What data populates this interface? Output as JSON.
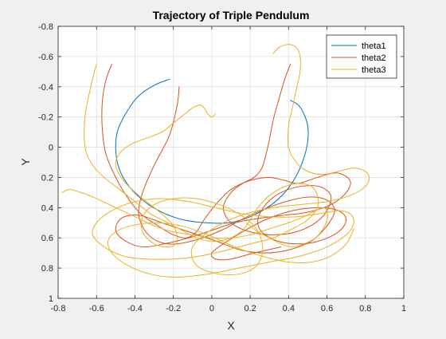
{
  "chart_data": {
    "type": "line",
    "title": "Trajectory of Triple Pendulum",
    "xlabel": "X",
    "ylabel": "Y",
    "xlim": [
      -0.8,
      1
    ],
    "ylim": [
      -0.8,
      1
    ],
    "y_reversed": true,
    "grid": true,
    "legend_placement": "top-right",
    "x_ticks": [
      -0.8,
      -0.6,
      -0.4,
      -0.2,
      0,
      0.2,
      0.4,
      0.6,
      0.8,
      1
    ],
    "x_tick_labels": [
      "-0.8",
      "-0.6",
      "-0.4",
      "-0.2",
      "0",
      "0.2",
      "0.4",
      "0.6",
      "0.8",
      "1"
    ],
    "y_ticks": [
      -0.8,
      -0.6,
      -0.4,
      -0.2,
      0,
      0.2,
      0.4,
      0.6,
      0.8,
      1
    ],
    "y_tick_labels": [
      "-0.8",
      "-0.6",
      "-0.4",
      "-0.2",
      "0",
      "0.2",
      "0.4",
      "0.6",
      "0.8",
      "1"
    ],
    "series": [
      {
        "name": "theta1",
        "color": "#0072BD",
        "segments": [
          {
            "x": [
              -0.22,
              -0.3,
              -0.38,
              -0.44,
              -0.49,
              -0.5,
              -0.48,
              -0.43,
              -0.35,
              -0.26,
              -0.15,
              -0.03,
              0.09,
              0.2,
              0.3,
              0.38,
              0.44,
              0.48,
              0.5,
              0.5,
              0.48,
              0.45,
              0.41
            ],
            "y": [
              -0.45,
              -0.41,
              -0.34,
              -0.24,
              -0.11,
              0.02,
              0.15,
              0.26,
              0.36,
              0.43,
              0.48,
              0.5,
              0.5,
              0.46,
              0.39,
              0.3,
              0.19,
              0.07,
              -0.04,
              -0.14,
              -0.22,
              -0.28,
              -0.31
            ]
          }
        ]
      },
      {
        "name": "theta2",
        "color": "#D95319",
        "segments": [
          {
            "x": [
              -0.52,
              -0.55,
              -0.57,
              -0.57,
              -0.55,
              -0.5,
              -0.44,
              -0.37,
              -0.28,
              -0.2,
              -0.13,
              -0.08,
              -0.04,
              0.02,
              0.1,
              0.2,
              0.3,
              0.38,
              0.45,
              0.55,
              0.65,
              0.72,
              0.7,
              0.62,
              0.5,
              0.38,
              0.25,
              0.12,
              0.0,
              -0.12,
              -0.25,
              -0.36,
              -0.45,
              -0.5,
              -0.47,
              -0.38,
              -0.26,
              -0.12,
              0.02,
              0.15,
              0.28,
              0.4,
              0.52,
              0.6,
              0.64,
              0.6,
              0.5,
              0.36,
              0.2,
              0.05,
              -0.1,
              -0.23,
              -0.33,
              -0.38,
              -0.36,
              -0.3,
              -0.22,
              -0.18,
              -0.17
            ],
            "y": [
              -0.55,
              -0.45,
              -0.3,
              -0.12,
              0.05,
              0.2,
              0.33,
              0.44,
              0.52,
              0.58,
              0.6,
              0.56,
              0.48,
              0.38,
              0.28,
              0.22,
              0.2,
              0.22,
              0.24,
              0.2,
              0.17,
              0.22,
              0.3,
              0.38,
              0.43,
              0.45,
              0.47,
              0.5,
              0.55,
              0.6,
              0.64,
              0.66,
              0.62,
              0.55,
              0.47,
              0.45,
              0.5,
              0.56,
              0.62,
              0.68,
              0.7,
              0.68,
              0.62,
              0.52,
              0.42,
              0.35,
              0.33,
              0.37,
              0.45,
              0.55,
              0.62,
              0.64,
              0.58,
              0.45,
              0.3,
              0.12,
              -0.08,
              -0.28,
              -0.4
            ]
          },
          {
            "x": [
              0.41,
              0.38,
              0.35,
              0.32,
              0.3,
              0.28,
              0.26,
              0.22,
              0.16,
              0.1,
              0.06,
              0.1,
              0.2,
              0.32,
              0.44,
              0.54,
              0.6,
              0.62,
              0.56,
              0.46,
              0.36,
              0.28,
              0.24,
              0.26,
              0.34,
              0.45,
              0.56,
              0.66,
              0.7,
              0.66,
              0.56,
              0.42,
              0.28,
              0.16,
              0.06,
              0.0,
              0.02,
              0.1,
              0.22,
              0.36
            ],
            "y": [
              -0.55,
              -0.45,
              -0.32,
              -0.18,
              -0.05,
              0.06,
              0.14,
              0.2,
              0.24,
              0.3,
              0.4,
              0.5,
              0.56,
              0.58,
              0.56,
              0.5,
              0.42,
              0.32,
              0.26,
              0.26,
              0.3,
              0.38,
              0.48,
              0.56,
              0.62,
              0.64,
              0.62,
              0.56,
              0.48,
              0.42,
              0.4,
              0.42,
              0.48,
              0.56,
              0.64,
              0.7,
              0.74,
              0.74,
              0.7,
              0.66
            ]
          }
        ]
      },
      {
        "name": "theta3",
        "color": "#EDB120",
        "segments": [
          {
            "x": [
              -0.6,
              -0.63,
              -0.66,
              -0.66,
              -0.62,
              -0.56,
              -0.5,
              -0.44,
              -0.38,
              -0.32,
              -0.26,
              -0.2,
              -0.14,
              -0.08,
              -0.02,
              0.04,
              0.1,
              0.16,
              0.2,
              0.24,
              0.3,
              0.38,
              0.46,
              0.52,
              0.55,
              0.55,
              0.5,
              0.42,
              0.32,
              0.2,
              0.08,
              -0.06,
              -0.2,
              -0.34,
              -0.46,
              -0.56,
              -0.62,
              -0.6,
              -0.52,
              -0.4,
              -0.26,
              -0.12,
              0.02,
              0.16,
              0.3,
              0.44,
              0.56,
              0.66,
              0.72,
              0.74,
              0.7,
              0.6,
              0.46,
              0.3,
              0.14,
              -0.02,
              -0.18,
              -0.32,
              -0.44,
              -0.52,
              -0.54,
              -0.5,
              -0.42,
              -0.3,
              -0.16,
              -0.02,
              0.12,
              0.26,
              0.4,
              0.52,
              0.62,
              0.7,
              0.74
            ],
            "y": [
              -0.55,
              -0.4,
              -0.2,
              0.0,
              0.12,
              0.2,
              0.26,
              0.32,
              0.38,
              0.44,
              0.48,
              0.52,
              0.56,
              0.6,
              0.62,
              0.62,
              0.6,
              0.55,
              0.48,
              0.4,
              0.32,
              0.26,
              0.24,
              0.26,
              0.32,
              0.4,
              0.48,
              0.54,
              0.6,
              0.64,
              0.68,
              0.72,
              0.74,
              0.74,
              0.72,
              0.66,
              0.58,
              0.5,
              0.42,
              0.36,
              0.34,
              0.36,
              0.4,
              0.44,
              0.46,
              0.46,
              0.44,
              0.42,
              0.44,
              0.5,
              0.58,
              0.66,
              0.72,
              0.76,
              0.8,
              0.84,
              0.86,
              0.84,
              0.78,
              0.7,
              0.62,
              0.56,
              0.52,
              0.5,
              0.52,
              0.58,
              0.66,
              0.72,
              0.76,
              0.76,
              0.72,
              0.64,
              0.54
            ]
          },
          {
            "x": [
              0.32,
              0.35,
              0.4,
              0.44,
              0.46,
              0.46,
              0.44,
              0.42,
              0.4,
              0.4,
              0.44,
              0.5,
              0.58,
              0.66,
              0.72,
              0.76,
              0.8,
              0.82,
              0.8,
              0.72,
              0.6,
              0.46,
              0.32,
              0.18,
              0.06,
              -0.04,
              -0.1,
              -0.1,
              -0.06,
              0.04,
              0.14,
              0.22,
              0.26,
              0.26,
              0.22,
              0.14,
              0.04,
              -0.08,
              -0.2,
              -0.3,
              -0.36,
              -0.36,
              -0.3,
              -0.22,
              -0.18,
              -0.2,
              -0.28,
              -0.38,
              -0.46,
              -0.5,
              -0.48,
              -0.42,
              -0.34,
              -0.26,
              -0.2,
              -0.14,
              -0.1,
              -0.06,
              -0.04,
              -0.02,
              0.0,
              0.02
            ],
            "y": [
              -0.62,
              -0.66,
              -0.68,
              -0.66,
              -0.6,
              -0.5,
              -0.38,
              -0.26,
              -0.14,
              0.0,
              0.1,
              0.16,
              0.18,
              0.16,
              0.14,
              0.14,
              0.16,
              0.2,
              0.26,
              0.32,
              0.36,
              0.38,
              0.4,
              0.44,
              0.5,
              0.58,
              0.66,
              0.74,
              0.8,
              0.84,
              0.84,
              0.8,
              0.72,
              0.62,
              0.52,
              0.44,
              0.38,
              0.34,
              0.34,
              0.38,
              0.46,
              0.56,
              0.64,
              0.66,
              0.62,
              0.52,
              0.42,
              0.32,
              0.22,
              0.12,
              0.04,
              -0.02,
              -0.06,
              -0.1,
              -0.16,
              -0.22,
              -0.26,
              -0.28,
              -0.26,
              -0.22,
              -0.2,
              -0.22
            ]
          },
          {
            "x": [
              -0.78,
              -0.74,
              -0.68,
              -0.6,
              -0.5,
              -0.4,
              -0.3,
              -0.2,
              -0.1,
              0.0,
              0.1,
              0.2,
              0.3,
              0.4,
              0.48,
              0.54,
              0.58,
              0.6,
              0.6,
              0.58,
              0.54,
              0.48,
              0.42,
              0.36,
              0.3,
              0.24,
              0.18
            ],
            "y": [
              0.3,
              0.28,
              0.3,
              0.34,
              0.4,
              0.46,
              0.52,
              0.56,
              0.58,
              0.6,
              0.6,
              0.58,
              0.54,
              0.5,
              0.46,
              0.42,
              0.4,
              0.42,
              0.48,
              0.54,
              0.6,
              0.64,
              0.66,
              0.64,
              0.6,
              0.56,
              0.5
            ]
          }
        ]
      }
    ]
  }
}
